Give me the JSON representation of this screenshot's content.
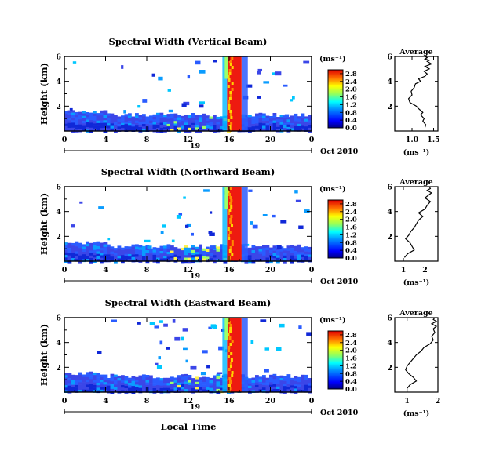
{
  "figure": {
    "xlabel": "Local Time",
    "colorbar_unit": "(ms⁻¹)",
    "date_label": "Oct 2010",
    "day_label": "19"
  },
  "chart_data": [
    {
      "type": "heatmap",
      "title": "Spectral Width (Vertical Beam)",
      "xlabel": "Local Time",
      "ylabel": "Height (km)",
      "x_ticks": [
        "0",
        "4",
        "8",
        "12",
        "16",
        "20",
        "0"
      ],
      "y_ticks": [
        "2",
        "4",
        "6"
      ],
      "xlim": [
        0,
        24
      ],
      "ylim": [
        0,
        6
      ],
      "colorbar_ticks": [
        "0.0",
        "0.4",
        "0.8",
        "1.2",
        "1.6",
        "2.0",
        "2.4",
        "2.8"
      ],
      "colorbar_range": [
        0,
        3.0
      ],
      "features": {
        "wide_values_time_range": [
          15.8,
          17.2
        ],
        "boundary_layer_top_km": 1.3
      }
    },
    {
      "type": "heatmap",
      "title": "Spectral Width (Northward Beam)",
      "xlabel": "Local Time",
      "ylabel": "Height (km)",
      "x_ticks": [
        "0",
        "4",
        "8",
        "12",
        "16",
        "20",
        "0"
      ],
      "y_ticks": [
        "2",
        "4",
        "6"
      ],
      "xlim": [
        0,
        24
      ],
      "ylim": [
        0,
        6
      ],
      "colorbar_ticks": [
        "0.0",
        "0.4",
        "0.8",
        "1.2",
        "1.6",
        "2.0",
        "2.4",
        "2.8"
      ],
      "colorbar_range": [
        0,
        3.0
      ],
      "features": {
        "wide_values_time_range": [
          15.8,
          17.2
        ],
        "boundary_layer_top_km": 1.2
      }
    },
    {
      "type": "heatmap",
      "title": "Spectral Width (Eastward Beam)",
      "xlabel": "Local Time",
      "ylabel": "Height (km)",
      "x_ticks": [
        "0",
        "4",
        "8",
        "12",
        "16",
        "20",
        "0"
      ],
      "y_ticks": [
        "2",
        "4",
        "6"
      ],
      "xlim": [
        0,
        24
      ],
      "ylim": [
        0,
        6
      ],
      "colorbar_ticks": [
        "0.0",
        "0.4",
        "0.8",
        "1.2",
        "1.6",
        "2.0",
        "2.4",
        "2.8"
      ],
      "colorbar_range": [
        0,
        3.0
      ],
      "features": {
        "wide_values_time_range": [
          15.8,
          17.2
        ],
        "boundary_layer_top_km": 1.3
      }
    },
    {
      "type": "line",
      "title": "Average",
      "xlabel": "(ms⁻¹)",
      "ylabel": "",
      "x_ticks": [
        "1.0",
        "1.5"
      ],
      "y_ticks": [
        "2",
        "4",
        "6"
      ],
      "xlim": [
        0.6,
        1.6
      ],
      "ylim": [
        0,
        6
      ],
      "x": [
        1.3,
        1.32,
        1.25,
        1.28,
        1.2,
        1.25,
        1.15,
        1.1,
        0.95,
        0.92,
        1.0,
        0.98,
        1.05,
        1.08,
        1.2,
        1.15,
        1.3,
        1.35,
        1.28,
        1.4,
        1.3,
        1.45,
        1.35,
        1.4,
        1.3,
        1.35,
        1.3
      ],
      "y": [
        0.3,
        0.5,
        0.8,
        1.0,
        1.3,
        1.5,
        1.8,
        2.0,
        2.3,
        2.6,
        2.9,
        3.2,
        3.5,
        3.8,
        4.0,
        4.2,
        4.4,
        4.6,
        4.8,
        5.0,
        5.2,
        5.4,
        5.6,
        5.7,
        5.8,
        5.9,
        6.0
      ]
    },
    {
      "type": "line",
      "title": "Average",
      "xlabel": "(ms⁻¹)",
      "ylabel": "",
      "x_ticks": [
        "1",
        "2"
      ],
      "y_ticks": [
        "2",
        "4",
        "6"
      ],
      "xlim": [
        0.6,
        2.6
      ],
      "ylim": [
        0,
        6
      ],
      "x": [
        1.05,
        1.2,
        1.5,
        1.4,
        1.3,
        1.1,
        1.25,
        1.35,
        1.5,
        1.6,
        1.7,
        1.9,
        1.7,
        2.0,
        2.1,
        2.25,
        2.0,
        2.15,
        2.3,
        2.1,
        2.25,
        2.2
      ],
      "y": [
        0.3,
        0.6,
        0.9,
        1.2,
        1.5,
        1.8,
        2.1,
        2.4,
        2.7,
        3.0,
        3.3,
        3.6,
        3.9,
        4.2,
        4.5,
        4.8,
        5.1,
        5.3,
        5.5,
        5.7,
        5.85,
        6.0
      ]
    },
    {
      "type": "line",
      "title": "Average",
      "xlabel": "(ms⁻¹)",
      "ylabel": "",
      "x_ticks": [
        "1",
        "2"
      ],
      "y_ticks": [
        "2",
        "4",
        "6"
      ],
      "xlim": [
        0.6,
        2.0
      ],
      "ylim": [
        0,
        6
      ],
      "x": [
        1.0,
        1.1,
        1.3,
        1.2,
        1.05,
        0.95,
        1.0,
        1.1,
        1.2,
        1.3,
        1.45,
        1.55,
        1.75,
        1.85,
        1.8,
        1.9,
        1.85,
        1.95,
        1.8,
        1.95,
        1.85,
        1.9
      ],
      "y": [
        0.3,
        0.6,
        0.9,
        1.2,
        1.5,
        1.8,
        2.1,
        2.4,
        2.7,
        3.0,
        3.3,
        3.6,
        3.9,
        4.2,
        4.5,
        4.8,
        5.1,
        5.3,
        5.5,
        5.7,
        5.85,
        6.0
      ]
    }
  ]
}
